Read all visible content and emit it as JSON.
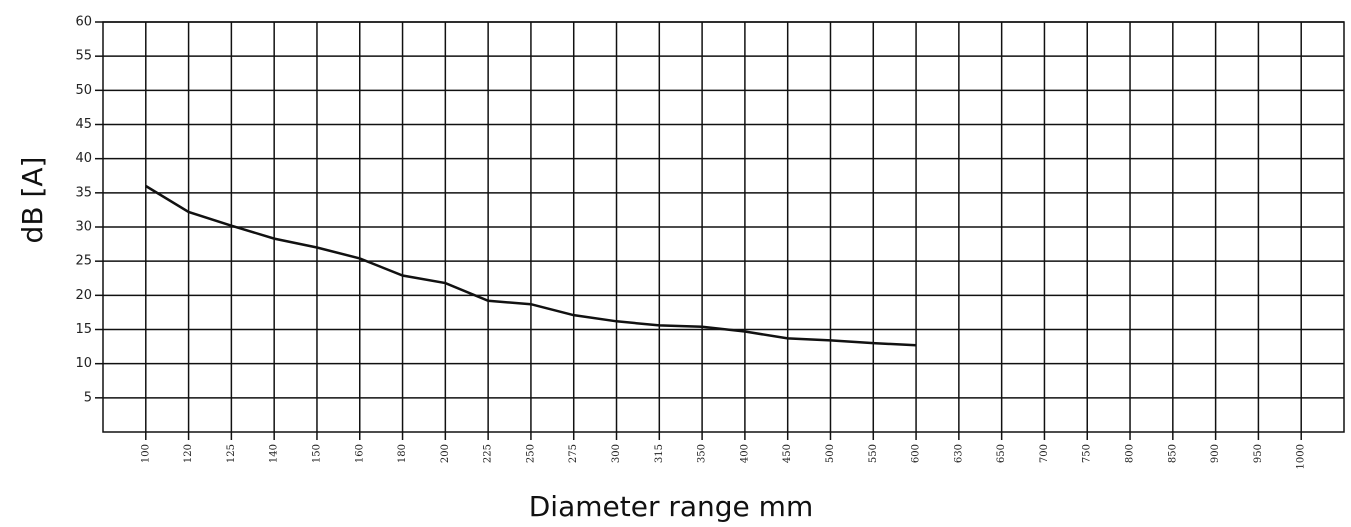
{
  "chart_data": {
    "type": "line",
    "x_label": "Diameter range mm",
    "y_label": "dB [A]",
    "categories": [
      "100",
      "120",
      "125",
      "140",
      "150",
      "160",
      "180",
      "200",
      "225",
      "250",
      "275",
      "300",
      "315",
      "350",
      "400",
      "450",
      "500",
      "550",
      "600",
      "630",
      "650",
      "700",
      "750",
      "800",
      "850",
      "900",
      "950",
      "1000"
    ],
    "series": [
      {
        "color": "#111111",
        "values": [
          36,
          32.2,
          30.2,
          28.3,
          27,
          25.4,
          22.9,
          21.8,
          19.2,
          18.7,
          17.1,
          16.2,
          15.6,
          15.4,
          14.7,
          13.7,
          13.4,
          13,
          12.7,
          null,
          null,
          null,
          null,
          null,
          null,
          null,
          null,
          null
        ]
      }
    ],
    "ylim": [
      0,
      60
    ],
    "yticks": [
      5,
      10,
      15,
      20,
      25,
      30,
      35,
      40,
      45,
      50,
      55,
      60
    ],
    "grid": true
  }
}
